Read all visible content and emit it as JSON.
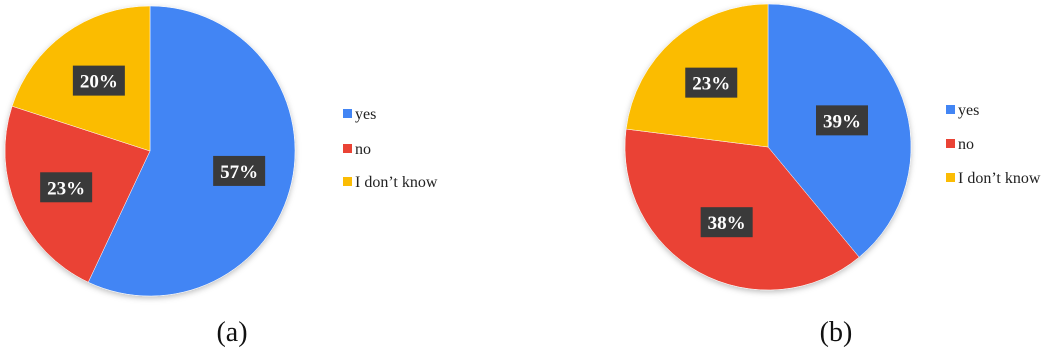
{
  "chart_data": [
    {
      "type": "pie",
      "caption": "(a)",
      "categories": [
        "yes",
        "no",
        "I don’t know"
      ],
      "values": [
        57,
        23,
        20
      ],
      "labels": [
        "57%",
        "23%",
        "20%"
      ],
      "colors": [
        "#4285F4",
        "#EA4335",
        "#FBBC04"
      ],
      "legend": "right"
    },
    {
      "type": "pie",
      "caption": "(b)",
      "categories": [
        "yes",
        "no",
        "I don’t know"
      ],
      "values": [
        39,
        38,
        23
      ],
      "labels": [
        "39%",
        "38%",
        "23%"
      ],
      "colors": [
        "#4285F4",
        "#EA4335",
        "#FBBC04"
      ],
      "legend": "right"
    }
  ]
}
